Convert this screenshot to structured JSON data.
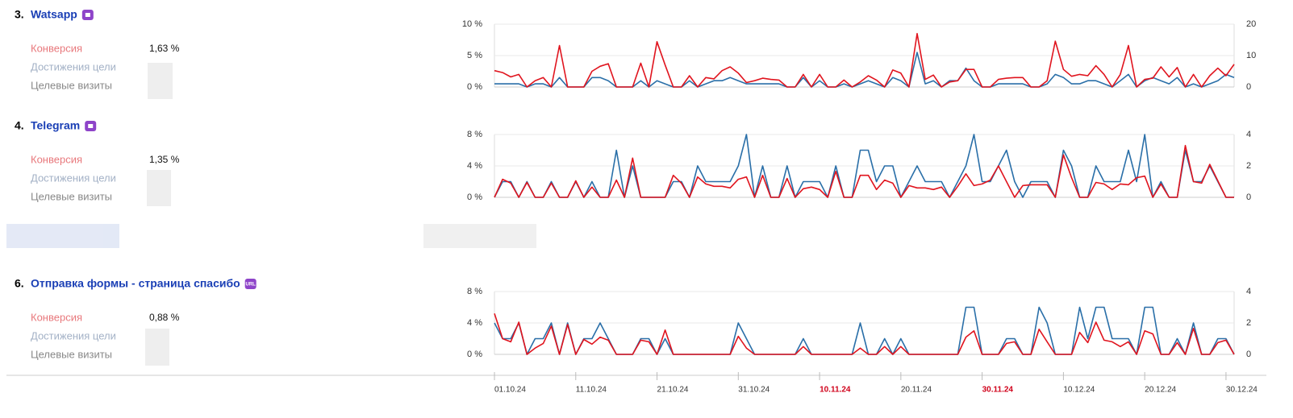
{
  "goals": [
    {
      "number": "3.",
      "name": "Watsapp",
      "metrics": [
        {
          "label": "Конверсия",
          "value": "1,63 %"
        },
        {
          "label": "Достижения цели"
        },
        {
          "label": "Целевые визиты"
        }
      ]
    },
    {
      "number": "4.",
      "name": "Telegram",
      "metrics": [
        {
          "label": "Конверсия",
          "value": "1,35 %"
        },
        {
          "label": "Достижения цели"
        },
        {
          "label": "Целевые визиты"
        }
      ]
    },
    {
      "number": "6.",
      "name": "Отправка формы - страница спасибо",
      "badge": "URL",
      "metrics": [
        {
          "label": "Конверсия",
          "value": "0,88 %"
        },
        {
          "label": "Достижения цели"
        },
        {
          "label": "Целевые визиты"
        }
      ]
    }
  ],
  "chart_data": [
    {
      "type": "line",
      "xlim": [
        0,
        91
      ],
      "ylim": [
        0,
        10
      ],
      "yticks": [
        {
          "value": 0,
          "label": "0 %"
        },
        {
          "value": 5,
          "label": "5 %"
        },
        {
          "value": 10,
          "label": "10 %"
        }
      ],
      "y2lim": [
        0,
        20
      ],
      "y2ticks": [
        0,
        10,
        20
      ],
      "grid": true,
      "series": [
        {
          "color": "#e0141e",
          "values": [
            2.6,
            2.3,
            1.6,
            2.0,
            0,
            1.0,
            1.5,
            0,
            6.6,
            0,
            0,
            0,
            2.5,
            3.3,
            3.7,
            0,
            0,
            0,
            3.8,
            0,
            7.2,
            3.5,
            0,
            0,
            1.8,
            0,
            1.5,
            1.3,
            2.6,
            3.2,
            2.2,
            0.7,
            1.0,
            1.4,
            1.2,
            1.1,
            0,
            0,
            2.0,
            0,
            2.0,
            0,
            0,
            1.1,
            0,
            0.8,
            1.8,
            1.1,
            0,
            2.7,
            2.2,
            0,
            8.5,
            1.2,
            1.9,
            0,
            0.8,
            1.0,
            2.8,
            2.8,
            0,
            0,
            1.2,
            1.4,
            1.5,
            1.5,
            0,
            0,
            1.0,
            7.3,
            2.8,
            1.7,
            2.0,
            1.8,
            3.4,
            2.0,
            0,
            2.0,
            6.6,
            0,
            1.2,
            1.4,
            3.2,
            1.6,
            3.1,
            0,
            2.0,
            0,
            1.8,
            3.0,
            1.8,
            3.6
          ]
        },
        {
          "color": "#2a6fa8",
          "axis": "y2",
          "values": [
            1,
            1,
            1,
            1,
            0,
            1,
            1,
            0,
            3,
            0,
            0,
            0,
            3,
            3,
            2,
            0,
            0,
            0,
            2,
            0,
            2,
            1,
            0,
            0,
            2,
            0,
            1,
            2,
            2,
            3,
            2,
            1,
            1,
            1,
            1,
            1,
            0,
            0,
            3,
            0,
            2,
            0,
            0,
            1,
            0,
            1,
            2,
            1,
            0,
            3,
            2,
            0,
            11,
            1,
            2,
            0,
            2,
            2,
            6,
            2,
            0,
            0,
            1,
            1,
            1,
            1,
            0,
            0,
            1,
            4,
            3,
            1,
            1,
            2,
            2,
            1,
            0,
            2,
            4,
            0,
            2,
            3,
            2,
            1,
            3,
            0,
            1,
            0,
            1,
            2,
            4,
            3
          ]
        }
      ]
    },
    {
      "type": "line",
      "xlim": [
        0,
        91
      ],
      "ylim": [
        0,
        8
      ],
      "yticks": [
        {
          "value": 0,
          "label": "0 %"
        },
        {
          "value": 4,
          "label": "4 %"
        },
        {
          "value": 8,
          "label": "8 %"
        }
      ],
      "y2lim": [
        0,
        4
      ],
      "y2ticks": [
        0,
        2,
        4
      ],
      "grid": true,
      "series": [
        {
          "color": "#e0141e",
          "values": [
            0,
            2.3,
            1.8,
            0,
            1.9,
            0,
            0,
            1.8,
            0,
            0,
            2.1,
            0,
            1.3,
            0,
            0,
            2.2,
            0,
            5.0,
            0,
            0,
            0,
            0,
            2.8,
            1.8,
            0,
            2.6,
            1.7,
            1.4,
            1.4,
            1.2,
            2.3,
            2.6,
            0,
            2.8,
            0,
            0,
            2.4,
            0,
            1.1,
            1.3,
            1.0,
            0,
            3.3,
            0,
            0,
            2.8,
            2.8,
            1.0,
            2.2,
            1.8,
            0,
            1.5,
            1.2,
            1.2,
            1.0,
            1.3,
            0,
            1.4,
            3.0,
            1.5,
            1.7,
            2.2,
            4.0,
            2.0,
            0,
            1.5,
            1.6,
            1.6,
            1.6,
            0,
            5.4,
            2.5,
            0,
            0,
            1.9,
            1.7,
            1.0,
            1.7,
            1.6,
            2.5,
            2.7,
            0,
            1.7,
            0,
            0,
            6.6,
            2.0,
            1.8,
            4.2,
            2.1,
            0,
            0
          ]
        },
        {
          "color": "#2a6fa8",
          "axis": "y2",
          "values": [
            0,
            1,
            1,
            0,
            1,
            0,
            0,
            1,
            0,
            0,
            1,
            0,
            1,
            0,
            0,
            3,
            0,
            2,
            0,
            0,
            0,
            0,
            1,
            1,
            0,
            2,
            1,
            1,
            1,
            1,
            2,
            4,
            0,
            2,
            0,
            0,
            2,
            0,
            1,
            1,
            1,
            0,
            2,
            0,
            0,
            3,
            3,
            1,
            2,
            2,
            0,
            1,
            2,
            1,
            1,
            1,
            0,
            1,
            2,
            4,
            1,
            1,
            2,
            3,
            1,
            0,
            1,
            1,
            1,
            0,
            3,
            2,
            0,
            0,
            2,
            1,
            1,
            1,
            3,
            1,
            4,
            0,
            1,
            0,
            0,
            3,
            1,
            1,
            2,
            1,
            0,
            0
          ]
        }
      ]
    },
    {
      "type": "line",
      "xlim": [
        0,
        91
      ],
      "ylim": [
        0,
        8
      ],
      "yticks": [
        {
          "value": 0,
          "label": "0 %"
        },
        {
          "value": 4,
          "label": "4 %"
        },
        {
          "value": 8,
          "label": "8 %"
        }
      ],
      "y2lim": [
        0,
        4
      ],
      "y2ticks": [
        0,
        2,
        4
      ],
      "grid": true,
      "xticks": [
        {
          "value": 0,
          "label": "01.10.24"
        },
        {
          "value": 10,
          "label": "11.10.24"
        },
        {
          "value": 20,
          "label": "21.10.24"
        },
        {
          "value": 30,
          "label": "31.10.24"
        },
        {
          "value": 40,
          "label": "10.11.24",
          "color": "#d0021b"
        },
        {
          "value": 50,
          "label": "20.11.24"
        },
        {
          "value": 60,
          "label": "30.11.24",
          "color": "#d0021b"
        },
        {
          "value": 70,
          "label": "10.12.24"
        },
        {
          "value": 80,
          "label": "20.12.24"
        },
        {
          "value": 90,
          "label": "30.12.24"
        }
      ],
      "series": [
        {
          "color": "#e0141e",
          "values": [
            5.2,
            2.0,
            1.6,
            4.1,
            0,
            0.8,
            1.4,
            3.6,
            0,
            3.8,
            0,
            1.9,
            1.3,
            2.2,
            1.8,
            0,
            0,
            0,
            1.8,
            1.6,
            0,
            3.1,
            0,
            0,
            0,
            0,
            0,
            0,
            0,
            0,
            2.3,
            0.8,
            0,
            0,
            0,
            0,
            0,
            0,
            1.0,
            0,
            0,
            0,
            0,
            0,
            0,
            0.8,
            0,
            0,
            1.0,
            0,
            1.0,
            0,
            0,
            0,
            0,
            0,
            0,
            0,
            2.2,
            3.0,
            0,
            0,
            0,
            1.4,
            1.6,
            0,
            0,
            3.2,
            1.6,
            0,
            0,
            0,
            2.8,
            1.5,
            4.1,
            1.8,
            1.6,
            1.0,
            1.6,
            0,
            3.0,
            2.6,
            0,
            0,
            1.5,
            0,
            3.3,
            0,
            0,
            1.5,
            1.8,
            0
          ]
        },
        {
          "color": "#2a6fa8",
          "axis": "y2",
          "values": [
            2,
            1,
            1,
            2,
            0,
            1,
            1,
            2,
            0,
            2,
            0,
            1,
            1,
            2,
            1,
            0,
            0,
            0,
            1,
            1,
            0,
            1,
            0,
            0,
            0,
            0,
            0,
            0,
            0,
            0,
            2,
            1,
            0,
            0,
            0,
            0,
            0,
            0,
            1,
            0,
            0,
            0,
            0,
            0,
            0,
            2,
            0,
            0,
            1,
            0,
            1,
            0,
            0,
            0,
            0,
            0,
            0,
            0,
            3,
            3,
            0,
            0,
            0,
            1,
            1,
            0,
            0,
            3,
            2,
            0,
            0,
            0,
            3,
            1,
            3,
            3,
            1,
            1,
            1,
            0,
            3,
            3,
            0,
            0,
            1,
            0,
            2,
            0,
            0,
            1,
            1,
            0
          ]
        }
      ]
    }
  ]
}
